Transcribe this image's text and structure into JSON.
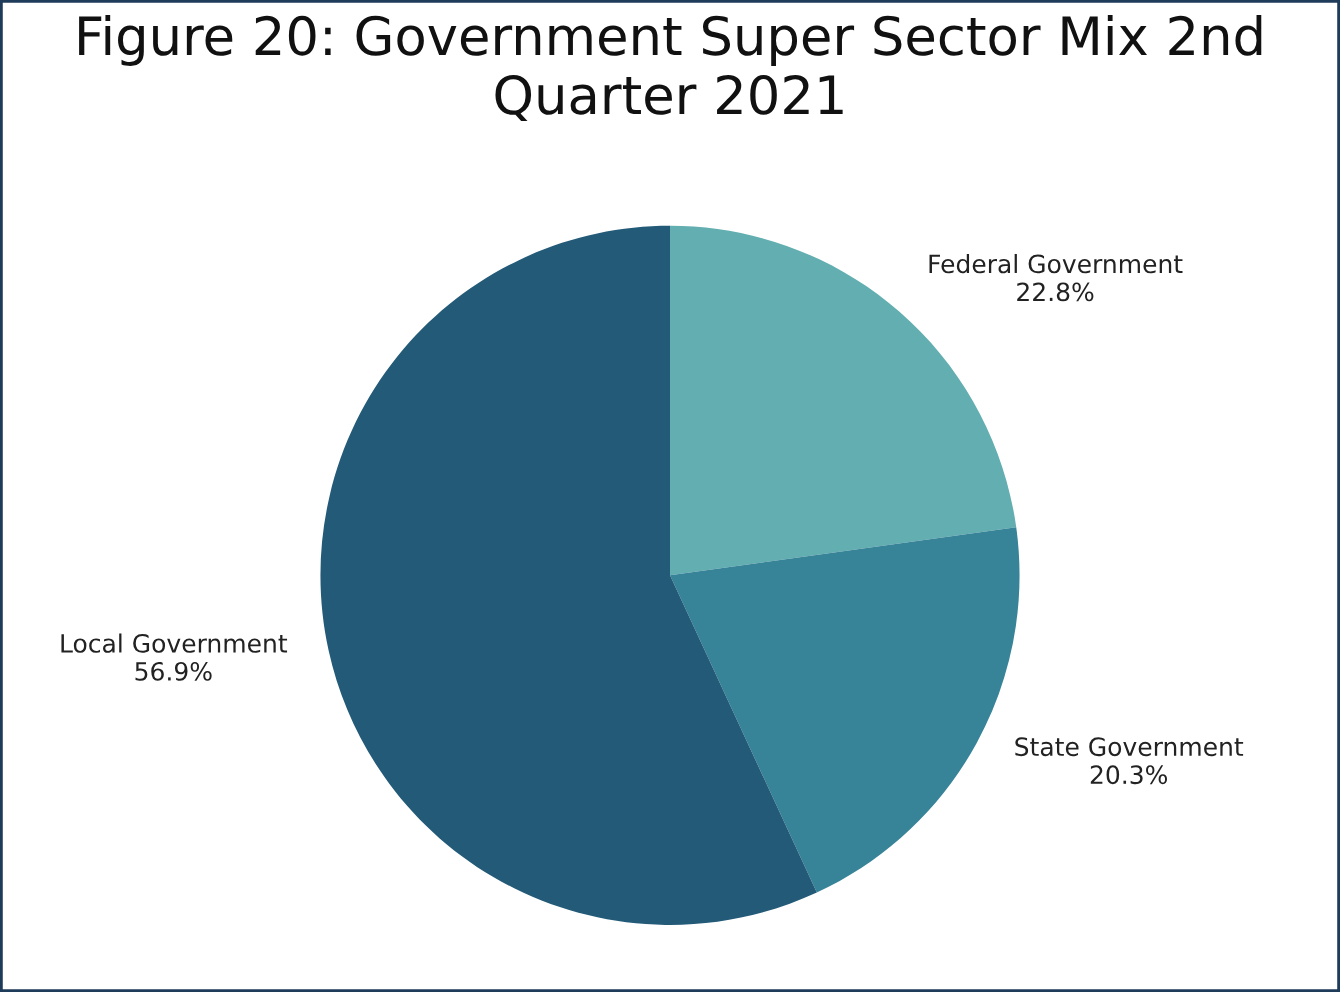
{
  "chart_data": {
    "type": "pie",
    "title": "Figure 20: Government Super Sector Mix 2nd Quarter 2021",
    "categories": [
      "Federal Government",
      "State Government",
      "Local Government"
    ],
    "values": [
      22.8,
      20.3,
      56.9
    ],
    "colors": [
      "#62aeb0",
      "#378398",
      "#225a78"
    ],
    "value_labels": [
      "22.8%",
      "20.3%",
      "56.9%"
    ]
  }
}
